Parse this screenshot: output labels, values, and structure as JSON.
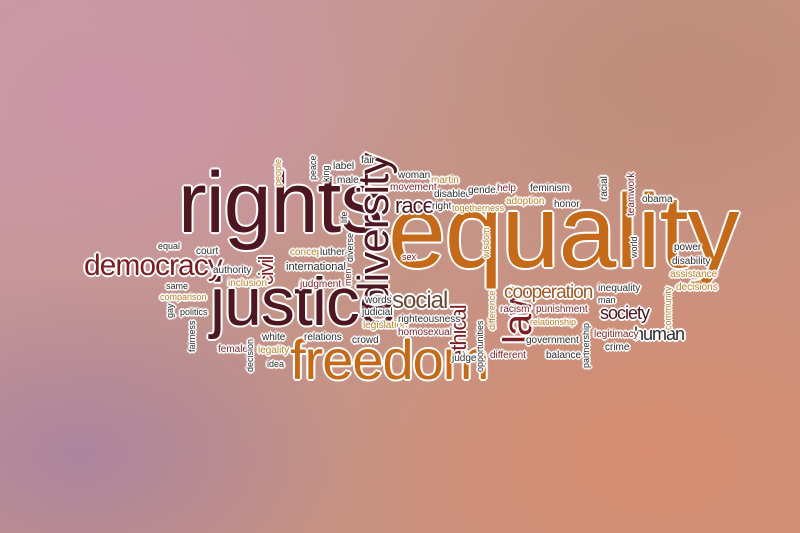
{
  "words": {
    "equality": "equality",
    "rights": "rights",
    "justice": "justice",
    "freedom": "freedom",
    "diversity": "diversity",
    "democracy": "democracy",
    "law": "law",
    "social": "social",
    "cooperation": "cooperation",
    "race": "race",
    "society": "society",
    "human": "human",
    "ethical": "ethical",
    "civil": "civil",
    "international": "international",
    "concept": "concept",
    "luther": "luther",
    "judgment": "judgment",
    "authority": "authority",
    "court": "court",
    "equal": "equal",
    "same": "same",
    "comparison": "comparison",
    "gay": "gay",
    "politics": "politics",
    "fairness": "fairness",
    "female": "female",
    "decision": "decision",
    "white": "white",
    "legality": "legality",
    "idea": "idea",
    "relations": "relations",
    "crowd": "crowd",
    "inclusion": "inclusion",
    "people": "people",
    "peace": "peace",
    "king": "king",
    "label": "label",
    "male": "male",
    "fair": "fair",
    "life": "life",
    "diverse": "diverse",
    "men": "men",
    "words": "words",
    "judicial": "judicial",
    "legislation": "legislation",
    "woman": "woman",
    "martin": "martin",
    "movement": "movement",
    "disabled": "disabled",
    "right": "right",
    "gender": "gender",
    "togetherness": "togetherness",
    "help": "help",
    "adoption": "adoption",
    "feminism": "feminism",
    "honor": "honor",
    "racial": "racial",
    "teamwork": "teamwork",
    "obama": "obama",
    "sex": "sex",
    "wisdom": "wisdom",
    "world": "world",
    "power": "power",
    "disability": "disability",
    "assistance": "assistance",
    "decisions": "decisions",
    "community": "community",
    "inequality": "inequality",
    "man": "man",
    "racism": "racism",
    "punishment": "punishment",
    "relationship": "relationship",
    "legitimacy": "legitimacy",
    "crime": "crime",
    "righteousness": "righteousness",
    "homosexual": "homosexual",
    "difference": "difference",
    "opportunities": "opportunities",
    "judge": "judge",
    "different": "different",
    "government": "government",
    "balance": "balance",
    "partnership": "partnership"
  }
}
